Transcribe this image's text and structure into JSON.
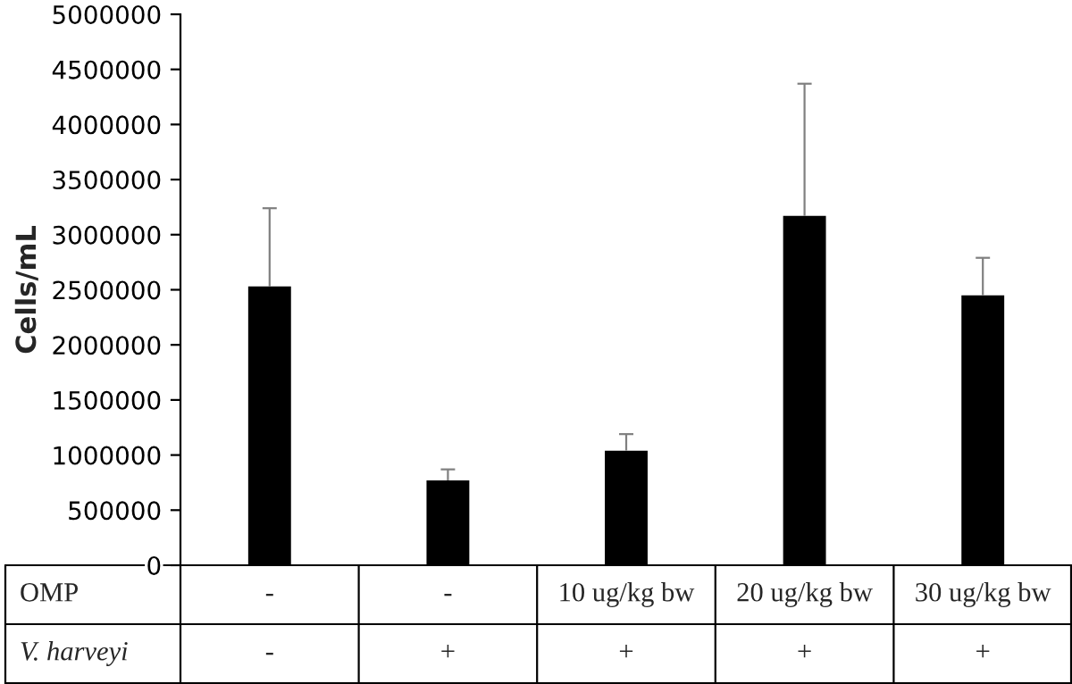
{
  "chart_data": {
    "type": "bar",
    "ylabel": "Cells/mL",
    "categories": [
      "-\n-",
      "-\n+",
      "10 ug/kg bw\n+",
      "20 ug/kg bw\n+",
      "30 ug/kg bw\n+"
    ],
    "values": [
      2530000,
      770000,
      1040000,
      3170000,
      2450000
    ],
    "errors": [
      [
        2530000,
        3240000
      ],
      [
        770000,
        870000
      ],
      [
        1040000,
        1190000
      ],
      [
        3170000,
        4370000
      ],
      [
        2450000,
        2790000
      ]
    ],
    "color": "#000000",
    "ylim": [
      0,
      5000000
    ],
    "yticks": [
      0,
      500000,
      1000000,
      1500000,
      2000000,
      2500000,
      3000000,
      3500000,
      4000000,
      4500000,
      5000000
    ],
    "annotations": [
      "OMP",
      "V. harveyi"
    ],
    "grid": false,
    "legend": false
  }
}
